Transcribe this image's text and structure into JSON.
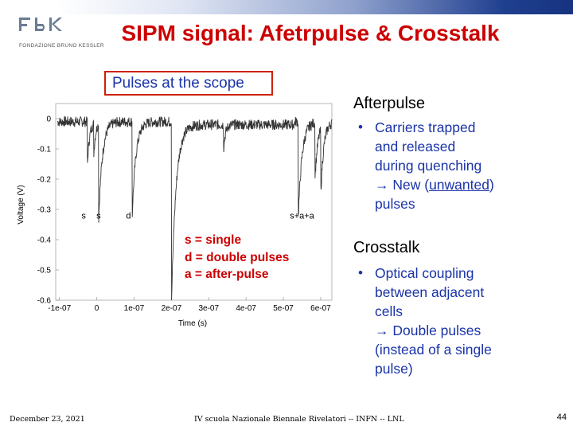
{
  "header": {
    "logo_text": "FONDAZIONE BRUNO KESSLER",
    "title": "SIPM signal: Afetrpulse & Crosstalk"
  },
  "scope_label": "Pulses at the scope",
  "plot": {
    "ylabel": "Voltage (V)",
    "xlabel": "Time (s)",
    "yticks": [
      "0",
      "-0.1",
      "-0.2",
      "-0.3",
      "-0.4",
      "-0.5",
      "-0.6"
    ],
    "xticks": [
      "-1e-07",
      "0",
      "1e-07",
      "2e-07",
      "3e-07",
      "4e-07",
      "5e-07",
      "6e-07"
    ],
    "annotations": [
      "s",
      "s",
      "d",
      "s+a+a"
    ]
  },
  "legend": {
    "line1": "s = single",
    "line2": "d = double pulses",
    "line3": "a = after-pulse"
  },
  "afterpulse": {
    "title": "Afterpulse",
    "bullet": "•",
    "line1": "Carriers trapped",
    "line2": "and released",
    "line3": "during quenching",
    "arrow": "→",
    "line4_pre": " New (",
    "line4_u": "unwanted",
    "line4_post": ")",
    "line5": "pulses"
  },
  "crosstalk": {
    "title": "Crosstalk",
    "bullet": "•",
    "line1": "Optical coupling",
    "line2": "between adjacent",
    "line3": "cells",
    "arrow": "→",
    "line4": " Double pulses",
    "line5": "(instead of a single",
    "line6": "pulse)"
  },
  "footer": {
    "date": "December 23, 2021",
    "event": "IV scuola Nazionale Biennale Rivelatori -- INFN -- LNL",
    "page": "44"
  },
  "colors": {
    "title": "#cc0000",
    "body_text": "#1a33a8",
    "legend": "#cc0000",
    "scope_border": "#cc2200"
  }
}
